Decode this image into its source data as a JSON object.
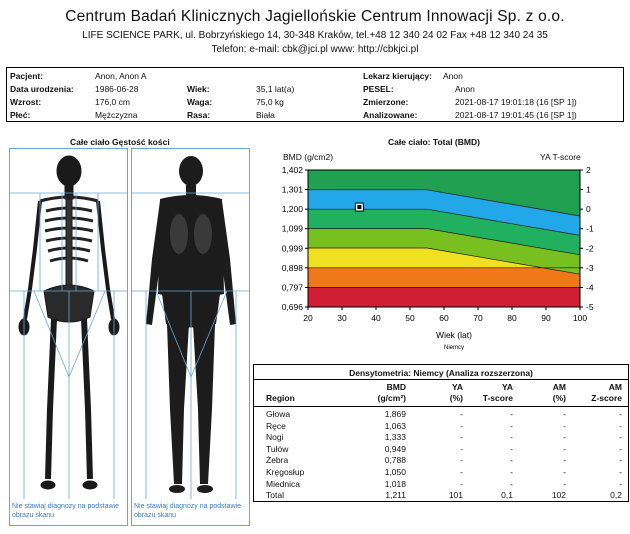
{
  "header": {
    "title": "Centrum Badań Klinicznych Jagiellońskie Centrum Innowacji Sp. z o.o.",
    "address": "LIFE SCIENCE PARK, ul. Bobrzyńskiego 14, 30-348 Kraków, tel.+48 12 340 24 02  Fax +48 12 340 24 35",
    "contact": "Telefon: e-mail: cbk@jci.pl  www: http://cbkjci.pl"
  },
  "patient": {
    "name_label": "Pacjent:",
    "name": "Anon, Anon A",
    "dob_label": "Data urodzenia:",
    "dob": "1986-06-28",
    "height_label": "Wzrost:",
    "height": "176,0 cm",
    "sex_label": "Płeć:",
    "sex": "Mężczyzna",
    "age_label": "Wiek:",
    "age": "35,1 lat(a)",
    "weight_label": "Waga:",
    "weight": "75,0 kg",
    "race_label": "Rasa:",
    "race": "Biała",
    "physician_label": "Lekarz kierujący:",
    "physician": "Anon",
    "pesel_label": "PESEL:",
    "pesel": "Anon",
    "measured_label": "Zmierzone:",
    "measured": "2021-08-17  19:01:18 (16 [SP 1])",
    "analyzed_label": "Analizowane:",
    "analyzed": "2021-08-17  19:01:45 (16 [SP 1])"
  },
  "scan": {
    "title": "Całe ciało Gęstość kości",
    "note": "Nie stawiaj diagnozy na podstawie obrazu skanu"
  },
  "chart_data": {
    "type": "area",
    "title": "Całe ciało: Total (BMD)",
    "ylabel": "BMD (g/cm2)",
    "y2label": "YA T-score",
    "xlabel": "Wiek (lat)",
    "xsublabel": "Niemcy",
    "x_ticks": [
      "20",
      "30",
      "40",
      "50",
      "60",
      "70",
      "80",
      "90",
      "100"
    ],
    "y_ticks": [
      "1,402",
      "1,301",
      "1,200",
      "1,099",
      "0,999",
      "0,898",
      "0,797",
      "0,696"
    ],
    "y2_ticks": [
      "2",
      "1",
      "0",
      "-1",
      "-2",
      "-3",
      "-4",
      "-5"
    ],
    "xlim": [
      20,
      100
    ],
    "ylim": [
      0.696,
      1.402
    ],
    "band_colors": [
      "#d01f35",
      "#f07818",
      "#f0e020",
      "#78c020",
      "#20b060",
      "#22a8e8",
      "#20a050"
    ],
    "band_bounds": [
      {
        "x": [
          20,
          55,
          100
        ],
        "y": [
          0.797,
          0.797,
          0.797
        ]
      },
      {
        "x": [
          20,
          55,
          100
        ],
        "y": [
          0.898,
          0.898,
          0.898
        ]
      },
      {
        "x": [
          20,
          55,
          100
        ],
        "y": [
          1.0,
          1.0,
          0.865
        ]
      },
      {
        "x": [
          20,
          55,
          100
        ],
        "y": [
          1.1,
          1.1,
          0.965
        ]
      },
      {
        "x": [
          20,
          55,
          100
        ],
        "y": [
          1.2,
          1.2,
          1.065
        ]
      },
      {
        "x": [
          20,
          55,
          100
        ],
        "y": [
          1.3,
          1.3,
          1.165
        ]
      }
    ],
    "patient_point": {
      "x": 35.1,
      "y": 1.211
    }
  },
  "densitometry": {
    "title": "Densytometria: Niemcy (Analiza rozszerzona)",
    "headers": {
      "region": "Region",
      "bmd1": "BMD",
      "bmd2": "(g/cm²)",
      "ya1": "YA",
      "ya2": "(%)",
      "yat1": "YA",
      "yat2": "T-score",
      "am1": "AM",
      "am2": "(%)",
      "amz1": "AM",
      "amz2": "Z-score"
    },
    "rows": [
      {
        "region": "Głowa",
        "bmd": "1,869",
        "ya": "-",
        "yat": "-",
        "am": "-",
        "amz": "-"
      },
      {
        "region": "Ręce",
        "bmd": "1,063",
        "ya": "-",
        "yat": "-",
        "am": "-",
        "amz": "-"
      },
      {
        "region": "Nogi",
        "bmd": "1,333",
        "ya": "-",
        "yat": "-",
        "am": "-",
        "amz": "-"
      },
      {
        "region": "Tułów",
        "bmd": "0,949",
        "ya": "-",
        "yat": "-",
        "am": "-",
        "amz": "-"
      },
      {
        "region": "Żebra",
        "bmd": "0,788",
        "ya": "-",
        "yat": "-",
        "am": "-",
        "amz": "-"
      },
      {
        "region": "Kręgosłup",
        "bmd": "1,050",
        "ya": "-",
        "yat": "-",
        "am": "-",
        "amz": "-"
      },
      {
        "region": "Miednica",
        "bmd": "1,018",
        "ya": "-",
        "yat": "-",
        "am": "-",
        "amz": "-"
      },
      {
        "region": "Total",
        "bmd": "1,211",
        "ya": "101",
        "yat": "0,1",
        "am": "102",
        "amz": "0,2"
      }
    ]
  }
}
